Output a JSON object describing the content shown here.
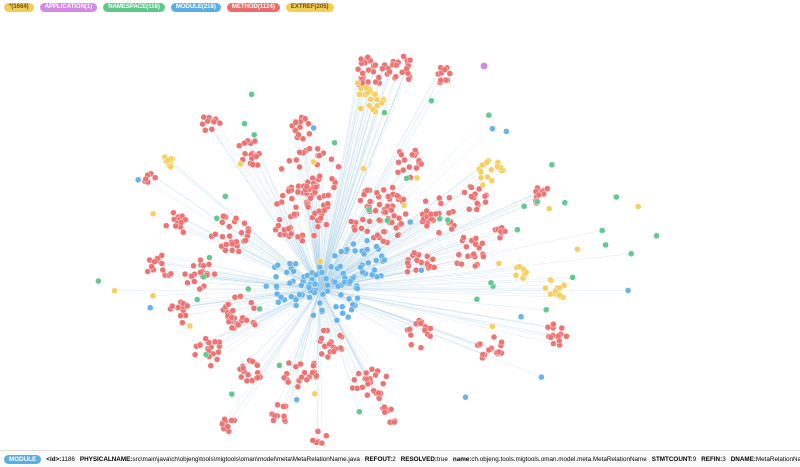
{
  "legend": {
    "items": [
      {
        "label": "*(1664)"
      },
      {
        "label": "APPLICATION(1)"
      },
      {
        "label": "NAMESPACE(116)"
      },
      {
        "label": "MODULE(218)"
      },
      {
        "label": "METHOD(1124)"
      },
      {
        "label": "EXTREF(205)"
      }
    ]
  },
  "details": {
    "label": "MODULE",
    "properties": [
      {
        "key": "<id>:",
        "value": "1186"
      },
      {
        "key": "PHYSICALNAME:",
        "value": "src\\main\\java\\ch\\objeng\\tools\\migtools\\oman\\model\\meta\\MetaRelationName.java"
      },
      {
        "key": "REFOUT:",
        "value": "2"
      },
      {
        "key": "RESOLVED:",
        "value": "true"
      },
      {
        "key": "name:",
        "value": "ch.objeng.tools.migtools.oman.model.meta.MetaRelationName"
      },
      {
        "key": "STMTCOUNT:",
        "value": "9"
      },
      {
        "key": "REFIN:",
        "value": "3"
      },
      {
        "key": "DNAME:",
        "value": "MetaRelationName"
      }
    ]
  }
}
